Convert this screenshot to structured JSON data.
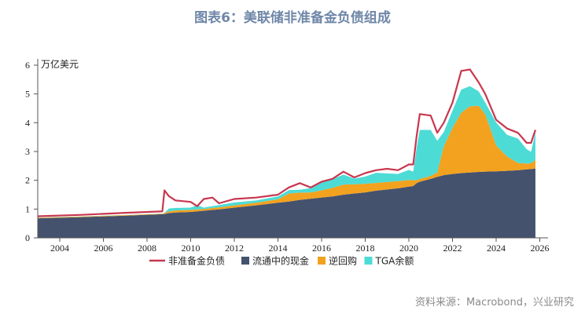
{
  "title": "图表6：美联储非准备金负债组成",
  "source": "资料来源：Macrobond，兴业研究",
  "chart_data": {
    "type": "area",
    "title": "图表6：美联储非准备金负债组成",
    "ylabel": "万亿美元",
    "xlabel": "",
    "xlim": [
      2003,
      2026.3
    ],
    "ylim": [
      0,
      6
    ],
    "xticks": [
      "2004",
      "2006",
      "2008",
      "2010",
      "2012",
      "2014",
      "2016",
      "2018",
      "2020",
      "2022",
      "2024",
      "2026"
    ],
    "yticks": [
      "0",
      "1",
      "2",
      "3",
      "4",
      "5",
      "6"
    ],
    "grid": false,
    "legend_position": "bottom",
    "colors": {
      "total": "#c8374f",
      "currency": "#44526e",
      "rrp": "#f2a21f",
      "tga": "#4ddbd6"
    },
    "x": [
      2003.0,
      2005.0,
      2007.0,
      2008.7,
      2008.8,
      2009.0,
      2009.3,
      2010.0,
      2010.3,
      2010.6,
      2011.0,
      2011.3,
      2012.0,
      2013.0,
      2014.0,
      2014.5,
      2015.0,
      2015.5,
      2016.0,
      2016.5,
      2017.0,
      2017.5,
      2018.0,
      2018.5,
      2019.0,
      2019.5,
      2020.0,
      2020.2,
      2020.35,
      2020.5,
      2021.0,
      2021.3,
      2021.6,
      2022.0,
      2022.4,
      2022.8,
      2023.2,
      2023.5,
      2024.0,
      2024.5,
      2025.0,
      2025.4,
      2025.6,
      2025.8
    ],
    "series": [
      {
        "name": "非准备金负债",
        "kind": "line",
        "values": [
          0.75,
          0.8,
          0.87,
          0.92,
          1.65,
          1.45,
          1.3,
          1.25,
          1.1,
          1.35,
          1.4,
          1.2,
          1.35,
          1.4,
          1.5,
          1.75,
          1.9,
          1.75,
          1.95,
          2.05,
          2.3,
          2.1,
          2.25,
          2.35,
          2.4,
          2.35,
          2.55,
          2.55,
          3.5,
          4.3,
          4.25,
          3.65,
          4.0,
          4.7,
          5.8,
          5.85,
          5.4,
          5.0,
          4.1,
          3.8,
          3.65,
          3.3,
          3.3,
          3.75
        ]
      },
      {
        "name": "流通中的现金",
        "kind": "stack",
        "values": [
          0.68,
          0.72,
          0.77,
          0.82,
          0.83,
          0.86,
          0.88,
          0.9,
          0.92,
          0.94,
          0.97,
          0.99,
          1.05,
          1.13,
          1.22,
          1.26,
          1.32,
          1.36,
          1.4,
          1.44,
          1.5,
          1.54,
          1.58,
          1.64,
          1.68,
          1.72,
          1.78,
          1.8,
          1.9,
          1.95,
          2.05,
          2.12,
          2.18,
          2.22,
          2.25,
          2.27,
          2.29,
          2.3,
          2.31,
          2.33,
          2.35,
          2.38,
          2.39,
          2.41
        ]
      },
      {
        "name": "逆回购",
        "kind": "stack",
        "values": [
          0.02,
          0.02,
          0.02,
          0.02,
          0.03,
          0.06,
          0.07,
          0.07,
          0.07,
          0.06,
          0.07,
          0.07,
          0.08,
          0.09,
          0.12,
          0.28,
          0.25,
          0.22,
          0.25,
          0.3,
          0.35,
          0.32,
          0.3,
          0.27,
          0.26,
          0.25,
          0.23,
          0.2,
          0.1,
          0.1,
          0.1,
          0.15,
          1.0,
          1.6,
          2.1,
          2.3,
          2.3,
          2.0,
          0.9,
          0.5,
          0.25,
          0.2,
          0.2,
          0.3
        ]
      },
      {
        "name": "TGA余额",
        "kind": "stack",
        "values": [
          0.005,
          0.005,
          0.005,
          0.005,
          0.01,
          0.1,
          0.09,
          0.08,
          0.15,
          0.05,
          0.06,
          0.08,
          0.1,
          0.08,
          0.1,
          0.12,
          0.1,
          0.15,
          0.3,
          0.3,
          0.35,
          0.2,
          0.25,
          0.35,
          0.3,
          0.25,
          0.35,
          0.3,
          1.1,
          1.7,
          1.6,
          1.1,
          0.5,
          0.6,
          0.8,
          0.7,
          0.5,
          0.4,
          0.8,
          0.75,
          0.85,
          0.5,
          0.4,
          0.95
        ]
      }
    ]
  }
}
